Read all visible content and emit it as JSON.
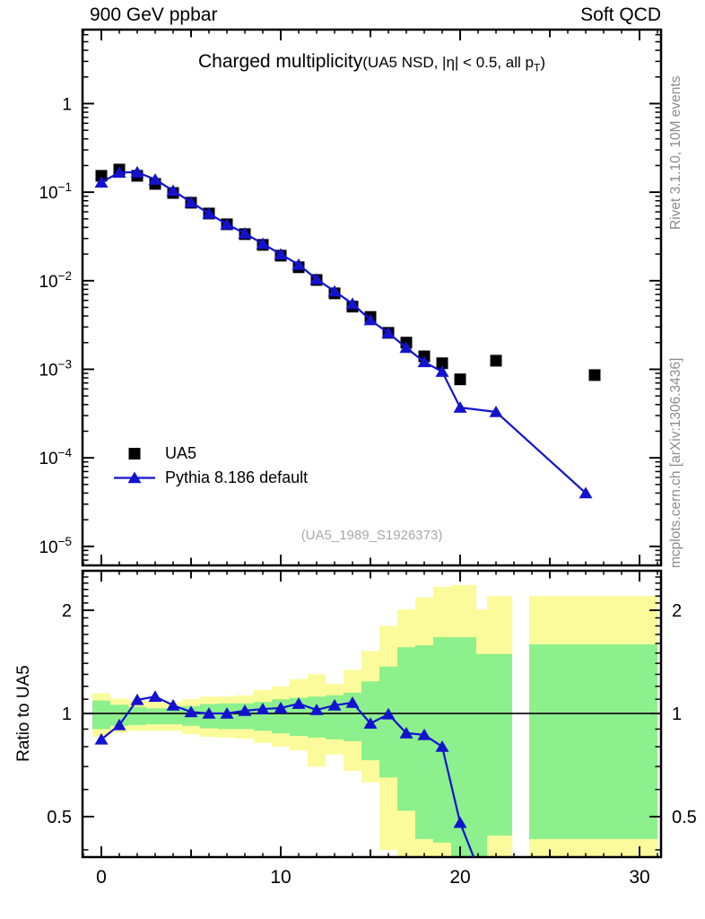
{
  "header": {
    "left_title": "900 GeV ppbar",
    "right_title": "Soft QCD"
  },
  "main_panel": {
    "title": "Charged multiplicity",
    "subtitle_pre": "(UA5 NSD, |η| < 0.5, all p",
    "subtitle_sub": "T",
    "subtitle_post": ")"
  },
  "legend": {
    "items": [
      {
        "label": "UA5"
      },
      {
        "label": "Pythia 8.186 default"
      }
    ]
  },
  "watermark": "(UA5_1989_S1926373)",
  "side_labels": {
    "top_right": "Rivet 3.1.10,  10M events",
    "bottom_right": "mcplots.cern.ch [arXiv:1306.3436]"
  },
  "ratio_panel": {
    "ylabel": "Ratio to UA5"
  },
  "colors": {
    "pythia_blue": "#1313cf",
    "band_yellow": "#fbfb9b",
    "band_green": "#8cf08c",
    "gray_text": "#8c8c8c",
    "frame": "#000000"
  },
  "chart_data": [
    {
      "panel": "main",
      "type": "scatter",
      "title": "Charged multiplicity (UA5 NSD, |eta| < 0.5, all pT)",
      "ylog": true,
      "xlim": [
        -1.05,
        31.2
      ],
      "ylim": [
        6.1e-06,
        6.85
      ],
      "ytick_exponents": [
        0,
        -1,
        -2,
        -3,
        -4,
        -5
      ],
      "xticks_labeled": [
        0,
        10,
        20,
        30
      ],
      "legend_position": "left-middle",
      "grid": false,
      "series": [
        {
          "name": "UA5",
          "marker": "square",
          "line": false,
          "color": "#000000",
          "x": [
            0,
            1,
            2,
            3,
            4,
            5,
            6,
            7,
            8,
            9,
            10,
            11,
            12,
            13,
            14,
            15,
            16,
            17,
            18,
            19,
            20,
            22,
            27.5
          ],
          "y": [
            0.153,
            0.18,
            0.153,
            0.124,
            0.098,
            0.076,
            0.0574,
            0.0434,
            0.0336,
            0.0254,
            0.0192,
            0.0142,
            0.0102,
            0.0072,
            0.0051,
            0.0039,
            0.00258,
            0.002,
            0.0014,
            0.00117,
            0.00077,
            0.00125,
            0.00086
          ]
        },
        {
          "name": "Pythia 8.186 default",
          "marker": "triangle",
          "line": true,
          "color": "#1313cf",
          "x": [
            0,
            1,
            2,
            3,
            4,
            5,
            6,
            7,
            8,
            9,
            10,
            11,
            12,
            13,
            14,
            15,
            16,
            17,
            18,
            19,
            20,
            22,
            27
          ],
          "y": [
            0.129,
            0.167,
            0.168,
            0.139,
            0.104,
            0.077,
            0.0574,
            0.0434,
            0.0342,
            0.0262,
            0.0199,
            0.0152,
            0.0104,
            0.0076,
            0.0055,
            0.0036,
            0.00257,
            0.00175,
            0.00121,
            0.00094,
            0.00037,
            0.00033,
            4e-05
          ]
        }
      ]
    },
    {
      "panel": "ratio",
      "type": "ratio-bands",
      "ylabel": "Ratio to UA5",
      "ylog": true,
      "xlim": [
        -1.05,
        31.2
      ],
      "ylim": [
        0.381,
        2.607
      ],
      "yticks": [
        0.5,
        1,
        2
      ],
      "xticks_labeled": [
        0,
        10,
        20,
        30
      ],
      "unity_line": 1,
      "bands": [
        {
          "x0": -0.5,
          "x1": 0.5,
          "yellow": [
            0.855,
            1.145
          ],
          "green": [
            0.9,
            1.09
          ]
        },
        {
          "x0": 0.5,
          "x1": 1.5,
          "yellow": [
            0.88,
            1.105
          ],
          "green": [
            0.92,
            1.06
          ]
        },
        {
          "x0": 1.5,
          "x1": 2.5,
          "yellow": [
            0.89,
            1.09
          ],
          "green": [
            0.925,
            1.045
          ]
        },
        {
          "x0": 2.5,
          "x1": 3.5,
          "yellow": [
            0.89,
            1.08
          ],
          "green": [
            0.93,
            1.035
          ]
        },
        {
          "x0": 3.5,
          "x1": 4.5,
          "yellow": [
            0.89,
            1.08
          ],
          "green": [
            0.93,
            1.035
          ]
        },
        {
          "x0": 4.5,
          "x1": 5.5,
          "yellow": [
            0.87,
            1.1
          ],
          "green": [
            0.92,
            1.05
          ]
        },
        {
          "x0": 5.5,
          "x1": 6.5,
          "yellow": [
            0.855,
            1.12
          ],
          "green": [
            0.905,
            1.065
          ]
        },
        {
          "x0": 6.5,
          "x1": 7.5,
          "yellow": [
            0.85,
            1.12
          ],
          "green": [
            0.9,
            1.07
          ]
        },
        {
          "x0": 7.5,
          "x1": 8.5,
          "yellow": [
            0.845,
            1.13
          ],
          "green": [
            0.9,
            1.07
          ]
        },
        {
          "x0": 8.5,
          "x1": 9.5,
          "yellow": [
            0.82,
            1.17
          ],
          "green": [
            0.89,
            1.08
          ]
        },
        {
          "x0": 9.5,
          "x1": 10.5,
          "yellow": [
            0.8,
            1.2
          ],
          "green": [
            0.875,
            1.1
          ]
        },
        {
          "x0": 10.5,
          "x1": 11.5,
          "yellow": [
            0.78,
            1.26
          ],
          "green": [
            0.86,
            1.11
          ]
        },
        {
          "x0": 11.5,
          "x1": 12.5,
          "yellow": [
            0.7,
            1.3
          ],
          "green": [
            0.85,
            1.12
          ]
        },
        {
          "x0": 12.5,
          "x1": 13.5,
          "yellow": [
            0.76,
            1.22
          ],
          "green": [
            0.84,
            1.13
          ]
        },
        {
          "x0": 13.5,
          "x1": 14.5,
          "yellow": [
            0.68,
            1.34
          ],
          "green": [
            0.83,
            1.15
          ]
        },
        {
          "x0": 14.5,
          "x1": 15.5,
          "yellow": [
            0.63,
            1.52
          ],
          "green": [
            0.73,
            1.24
          ]
        },
        {
          "x0": 15.5,
          "x1": 16.5,
          "yellow": [
            0.4,
            1.8
          ],
          "green": [
            0.65,
            1.37
          ]
        },
        {
          "x0": 16.5,
          "x1": 17.5,
          "yellow": [
            0.36,
            2.01
          ],
          "green": [
            0.52,
            1.56
          ]
        },
        {
          "x0": 17.5,
          "x1": 18.5,
          "yellow": [
            0.36,
            2.18
          ],
          "green": [
            0.43,
            1.58
          ]
        },
        {
          "x0": 18.5,
          "x1": 19.5,
          "yellow": [
            0.36,
            2.34
          ],
          "green": [
            0.42,
            1.67
          ]
        },
        {
          "x0": 19.5,
          "x1": 20.9,
          "yellow": [
            0.36,
            2.37
          ],
          "green": [
            0.36,
            1.67
          ]
        },
        {
          "x0": 20.9,
          "x1": 21.5,
          "yellow": [
            0.36,
            2.01
          ],
          "green": [
            0.38,
            1.49
          ]
        },
        {
          "x0": 21.5,
          "x1": 22.9,
          "yellow": [
            0.36,
            2.2
          ],
          "green": [
            0.44,
            1.49
          ]
        },
        {
          "x0": 23.85,
          "x1": 31,
          "yellow": [
            0.38,
            2.2
          ],
          "green": [
            0.43,
            1.59
          ]
        }
      ],
      "line": {
        "name": "Pythia 8.186 default / UA5",
        "color": "#1313cf",
        "marker": "triangle",
        "x": [
          0,
          1,
          2,
          3,
          4,
          5,
          6,
          7,
          8,
          9,
          10,
          11,
          12,
          13,
          14,
          15,
          16,
          17,
          18,
          19,
          20,
          22
        ],
        "r": [
          0.84,
          0.925,
          1.095,
          1.12,
          1.056,
          1.01,
          1.0,
          1.0,
          1.018,
          1.03,
          1.037,
          1.068,
          1.024,
          1.056,
          1.075,
          0.935,
          0.995,
          0.876,
          0.866,
          0.8,
          0.48,
          0.26
        ]
      }
    }
  ]
}
